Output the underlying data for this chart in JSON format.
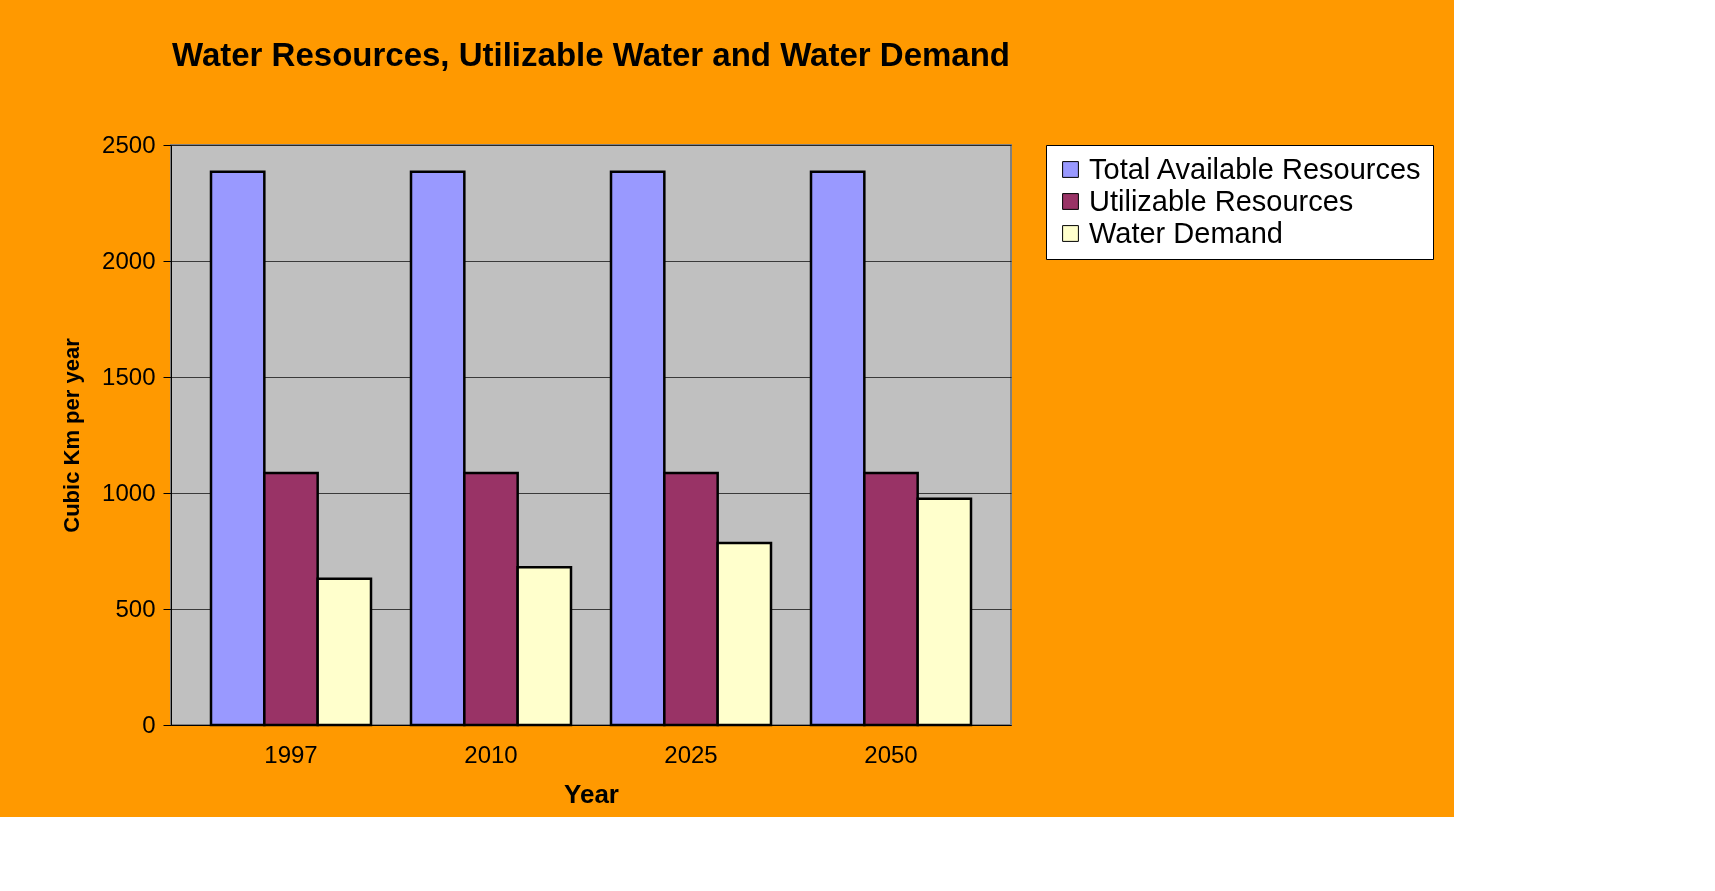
{
  "chart_data": {
    "type": "bar",
    "title": "Water Resources, Utilizable Water and Water Demand",
    "xlabel": "Year",
    "ylabel": "Cubic Km per year",
    "categories": [
      "1997",
      "2010",
      "2025",
      "2050"
    ],
    "series": [
      {
        "name": "Total Available Resources",
        "color": "#9999ff",
        "values": [
          2385,
          2385,
          2385,
          2385
        ]
      },
      {
        "name": "Utilizable Resources",
        "color": "#993366",
        "values": [
          1086,
          1086,
          1086,
          1086
        ]
      },
      {
        "name": "Water Demand",
        "color": "#ffffcc",
        "values": [
          630,
          680,
          785,
          975
        ]
      }
    ],
    "ylim": [
      0,
      2500
    ],
    "yticks": [
      0,
      500,
      1000,
      1500,
      2000,
      2500
    ],
    "grid": "y",
    "legend": "right"
  }
}
